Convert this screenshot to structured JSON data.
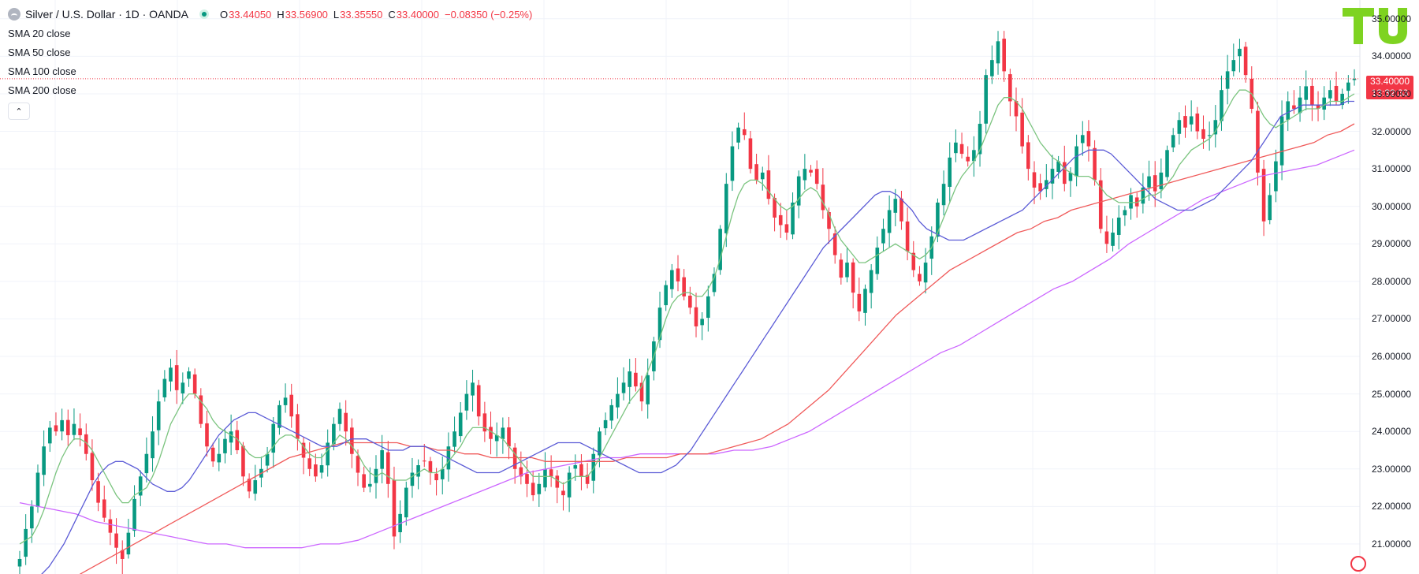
{
  "header": {
    "symbol": "Silver / U.S. Dollar · 1D · OANDA",
    "open_key": "O",
    "open_val": "33.44050",
    "high_key": "H",
    "high_val": "33.56900",
    "low_key": "L",
    "low_val": "33.35550",
    "close_key": "C",
    "close_val": "33.40000",
    "change": "−0.08350 (−0.25%)"
  },
  "indicators": [
    "SMA 20 close",
    "SMA 50 close",
    "SMA 100 close",
    "SMA 200 close"
  ],
  "price_tag": {
    "price": "33.40000",
    "countdown": "13:32:33"
  },
  "colors": {
    "up": "#089981",
    "down": "#f23645",
    "sma20": "#7bc47f",
    "sma50": "#5b5bd6",
    "sma100": "#f05a5a",
    "sma200": "#cc66ff",
    "grid": "#f0f3fa",
    "logo": "#7ed321"
  },
  "icons": {
    "symbol": "silver-coin-icon",
    "live": "market-open-dot-icon",
    "collapse": "chevron-up-icon",
    "logo": "tu-logo-icon",
    "settings": "settings-icon"
  },
  "chart_data": {
    "type": "candlestick",
    "timeframe": "1D",
    "ylim": [
      20.2,
      35.5
    ],
    "y_ticks": [
      "35.00000",
      "34.00000",
      "33.00000",
      "32.00000",
      "31.00000",
      "30.00000",
      "29.00000",
      "28.00000",
      "27.00000",
      "26.00000",
      "25.00000",
      "24.00000",
      "23.00000",
      "22.00000",
      "21.00000"
    ],
    "last_price": 33.4,
    "closes": [
      20.6,
      21.4,
      22.0,
      22.9,
      23.6,
      24.1,
      24.0,
      24.3,
      23.9,
      24.2,
      23.9,
      23.4,
      22.7,
      22.1,
      21.7,
      21.3,
      20.9,
      20.6,
      21.3,
      22.2,
      22.8,
      23.4,
      24.0,
      24.8,
      25.4,
      25.7,
      25.1,
      25.3,
      25.6,
      25.0,
      24.2,
      23.6,
      23.2,
      23.4,
      23.8,
      24.0,
      23.5,
      22.8,
      22.4,
      22.7,
      23.0,
      23.4,
      24.2,
      24.7,
      24.9,
      24.4,
      23.8,
      23.3,
      23.0,
      22.8,
      23.1,
      23.7,
      24.2,
      24.6,
      24.0,
      23.4,
      22.9,
      22.5,
      22.6,
      23.0,
      23.5,
      22.6,
      21.2,
      21.8,
      22.5,
      22.9,
      23.1,
      23.2,
      22.9,
      22.7,
      23.0,
      23.6,
      24.0,
      24.5,
      25.0,
      25.3,
      24.4,
      24.0,
      23.8,
      23.9,
      24.1,
      23.6,
      23.0,
      22.8,
      22.6,
      22.3,
      22.6,
      23.0,
      22.8,
      22.5,
      22.3,
      22.9,
      23.1,
      22.8,
      22.6,
      23.4,
      24.0,
      24.3,
      24.7,
      25.0,
      25.3,
      25.6,
      25.2,
      24.8,
      25.5,
      26.4,
      27.3,
      27.9,
      28.3,
      28.0,
      27.6,
      27.3,
      26.8,
      27.0,
      27.6,
      28.2,
      29.4,
      30.6,
      31.6,
      32.1,
      31.9,
      31.0,
      30.7,
      30.9,
      30.2,
      29.7,
      29.5,
      29.3,
      30.1,
      30.8,
      31.0,
      30.9,
      30.6,
      29.9,
      29.4,
      28.7,
      28.1,
      28.5,
      27.7,
      27.2,
      27.8,
      28.3,
      28.9,
      29.4,
      29.9,
      30.2,
      29.6,
      28.8,
      28.3,
      28.0,
      28.5,
      29.2,
      30.1,
      30.6,
      31.3,
      31.7,
      31.4,
      31.2,
      31.5,
      32.2,
      33.5,
      33.9,
      34.4,
      33.6,
      32.8,
      32.4,
      31.6,
      31.0,
      30.5,
      30.4,
      30.7,
      31.0,
      31.2,
      30.6,
      30.9,
      31.6,
      31.9,
      31.6,
      30.7,
      29.4,
      29.0,
      29.3,
      29.7,
      29.9,
      30.3,
      30.0,
      30.5,
      30.8,
      30.4,
      30.9,
      31.5,
      31.9,
      32.3,
      32.1,
      32.4,
      32.0,
      31.8,
      31.9,
      32.3,
      33.1,
      33.6,
      33.9,
      34.2,
      33.5,
      32.6,
      30.9,
      29.6,
      30.3,
      31.2,
      32.4,
      32.8,
      32.6,
      32.9,
      33.2,
      32.7,
      32.6,
      32.9,
      33.1,
      32.8,
      33.0,
      33.3,
      33.4
    ],
    "sma20": [
      21.0,
      21.1,
      21.2,
      21.5,
      21.9,
      22.4,
      22.9,
      23.3,
      23.6,
      23.8,
      23.8,
      23.7,
      23.5,
      23.2,
      22.9,
      22.6,
      22.3,
      22.1,
      22.1,
      22.3,
      22.4,
      22.5,
      22.8,
      23.2,
      23.7,
      24.2,
      24.5,
      24.8,
      25.0,
      25.0,
      24.8,
      24.6,
      24.3,
      24.1,
      24.0,
      23.9,
      23.8,
      23.6,
      23.4,
      23.3,
      23.3,
      23.4,
      23.6,
      23.8,
      23.9,
      23.9,
      23.8,
      23.6,
      23.4,
      23.3,
      23.3,
      23.5,
      23.7,
      23.9,
      23.8,
      23.6,
      23.4,
      23.1,
      22.9,
      22.8,
      22.9,
      22.8,
      22.7,
      22.7,
      22.7,
      22.8,
      22.9,
      23.0,
      22.9,
      22.9,
      23.0,
      23.2,
      23.4,
      23.6,
      23.9,
      24.1,
      24.1,
      24.1,
      24.0,
      23.9,
      23.8,
      23.6,
      23.4,
      23.2,
      23.0,
      22.8,
      22.8,
      22.8,
      22.8,
      22.7,
      22.6,
      22.7,
      22.8,
      22.8,
      22.8,
      23.0,
      23.3,
      23.6,
      23.9,
      24.2,
      24.5,
      24.8,
      25.0,
      25.2,
      25.6,
      26.0,
      26.5,
      27.0,
      27.4,
      27.6,
      27.7,
      27.7,
      27.6,
      27.6,
      27.8,
      28.1,
      28.6,
      29.2,
      29.8,
      30.3,
      30.6,
      30.7,
      30.7,
      30.6,
      30.4,
      30.2,
      30.0,
      29.9,
      30.0,
      30.2,
      30.4,
      30.5,
      30.4,
      30.1,
      29.8,
      29.4,
      29.1,
      28.9,
      28.7,
      28.5,
      28.5,
      28.6,
      28.7,
      28.8,
      28.9,
      29.0,
      28.9,
      28.8,
      28.7,
      28.6,
      28.7,
      28.9,
      29.3,
      29.7,
      30.1,
      30.5,
      30.8,
      31.0,
      31.2,
      31.5,
      31.9,
      32.3,
      32.7,
      32.9,
      32.9,
      32.8,
      32.6,
      32.3,
      32.0,
      31.7,
      31.5,
      31.3,
      31.2,
      31.0,
      30.9,
      30.8,
      30.8,
      30.8,
      30.7,
      30.5,
      30.3,
      30.2,
      30.1,
      30.1,
      30.1,
      30.1,
      30.2,
      30.3,
      30.3,
      30.4,
      30.6,
      30.8,
      31.1,
      31.3,
      31.5,
      31.6,
      31.7,
      31.8,
      32.0,
      32.3,
      32.6,
      32.9,
      33.1,
      33.1,
      33.0,
      32.7,
      32.4,
      32.2,
      32.1,
      32.2,
      32.3,
      32.4,
      32.5,
      32.6,
      32.6,
      32.6,
      32.7,
      32.8,
      32.8,
      32.8,
      32.9,
      33.0
    ],
    "sma50": [
      19.8,
      19.9,
      20.0,
      20.2,
      20.4,
      20.7,
      21.0,
      21.4,
      21.8,
      22.2,
      22.6,
      22.9,
      23.1,
      23.2,
      23.2,
      23.1,
      23.0,
      22.8,
      22.6,
      22.5,
      22.4,
      22.4,
      22.5,
      22.7,
      23.0,
      23.3,
      23.6,
      23.9,
      24.1,
      24.3,
      24.4,
      24.5,
      24.5,
      24.4,
      24.3,
      24.2,
      24.1,
      24.0,
      23.9,
      23.8,
      23.7,
      23.6,
      23.6,
      23.6,
      23.7,
      23.8,
      23.8,
      23.8,
      23.7,
      23.6,
      23.5,
      23.5,
      23.5,
      23.6,
      23.6,
      23.6,
      23.5,
      23.4,
      23.3,
      23.2,
      23.1,
      23.0,
      22.9,
      22.9,
      22.9,
      22.9,
      23.0,
      23.1,
      23.2,
      23.3,
      23.4,
      23.5,
      23.6,
      23.7,
      23.7,
      23.7,
      23.7,
      23.6,
      23.5,
      23.4,
      23.3,
      23.2,
      23.1,
      23.0,
      22.9,
      22.9,
      22.9,
      22.9,
      23.0,
      23.1,
      23.3,
      23.5,
      23.8,
      24.1,
      24.4,
      24.7,
      25.0,
      25.3,
      25.6,
      25.9,
      26.2,
      26.5,
      26.8,
      27.1,
      27.4,
      27.7,
      28.0,
      28.3,
      28.6,
      28.9,
      29.1,
      29.3,
      29.5,
      29.7,
      29.9,
      30.1,
      30.3,
      30.4,
      30.4,
      30.3,
      30.1,
      29.9,
      29.6,
      29.4,
      29.3,
      29.2,
      29.1,
      29.1,
      29.1,
      29.2,
      29.3,
      29.4,
      29.5,
      29.6,
      29.7,
      29.8,
      29.9,
      30.1,
      30.3,
      30.5,
      30.7,
      30.9,
      31.1,
      31.3,
      31.4,
      31.5,
      31.5,
      31.5,
      31.4,
      31.2,
      31.0,
      30.8,
      30.6,
      30.4,
      30.2,
      30.1,
      30.0,
      29.9,
      29.9,
      29.9,
      30.0,
      30.1,
      30.2,
      30.4,
      30.6,
      30.8,
      31.0,
      31.2,
      31.5,
      31.8,
      32.1,
      32.4,
      32.5,
      32.6,
      32.7,
      32.7,
      32.7,
      32.7,
      32.7,
      32.7,
      32.8,
      32.8
    ],
    "sma100": [
      19.6,
      19.7,
      19.8,
      20.0,
      20.1,
      20.3,
      20.5,
      20.7,
      20.9,
      21.1,
      21.3,
      21.5,
      21.7,
      21.9,
      22.1,
      22.3,
      22.5,
      22.7,
      22.9,
      23.1,
      23.3,
      23.4,
      23.5,
      23.6,
      23.7,
      23.7,
      23.7,
      23.7,
      23.7,
      23.6,
      23.6,
      23.5,
      23.5,
      23.4,
      23.4,
      23.3,
      23.3,
      23.3,
      23.3,
      23.2,
      23.2,
      23.2,
      23.2,
      23.2,
      23.2,
      23.3,
      23.3,
      23.3,
      23.3,
      23.4,
      23.4,
      23.4,
      23.5,
      23.6,
      23.7,
      23.8,
      24.0,
      24.2,
      24.5,
      24.8,
      25.1,
      25.5,
      25.9,
      26.3,
      26.7,
      27.1,
      27.4,
      27.7,
      28.0,
      28.3,
      28.5,
      28.7,
      28.9,
      29.1,
      29.3,
      29.4,
      29.6,
      29.7,
      29.9,
      30.0,
      30.1,
      30.2,
      30.3,
      30.4,
      30.5,
      30.6,
      30.7,
      30.8,
      30.9,
      31.0,
      31.1,
      31.2,
      31.3,
      31.4,
      31.5,
      31.6,
      31.7,
      31.9,
      32.0,
      32.2
    ],
    "sma200": [
      22.1,
      22.0,
      21.9,
      21.8,
      21.6,
      21.5,
      21.4,
      21.3,
      21.2,
      21.1,
      21.0,
      21.0,
      20.9,
      20.9,
      20.9,
      20.9,
      21.0,
      21.0,
      21.1,
      21.3,
      21.5,
      21.7,
      21.9,
      22.1,
      22.3,
      22.5,
      22.7,
      22.9,
      23.0,
      23.1,
      23.2,
      23.3,
      23.3,
      23.4,
      23.4,
      23.4,
      23.4,
      23.4,
      23.5,
      23.5,
      23.6,
      23.8,
      24.0,
      24.3,
      24.6,
      24.9,
      25.2,
      25.5,
      25.8,
      26.1,
      26.3,
      26.6,
      26.9,
      27.2,
      27.5,
      27.8,
      28.0,
      28.3,
      28.6,
      29.0,
      29.3,
      29.6,
      29.9,
      30.2,
      30.4,
      30.6,
      30.8,
      30.9,
      31.0,
      31.1,
      31.3,
      31.5
    ]
  }
}
